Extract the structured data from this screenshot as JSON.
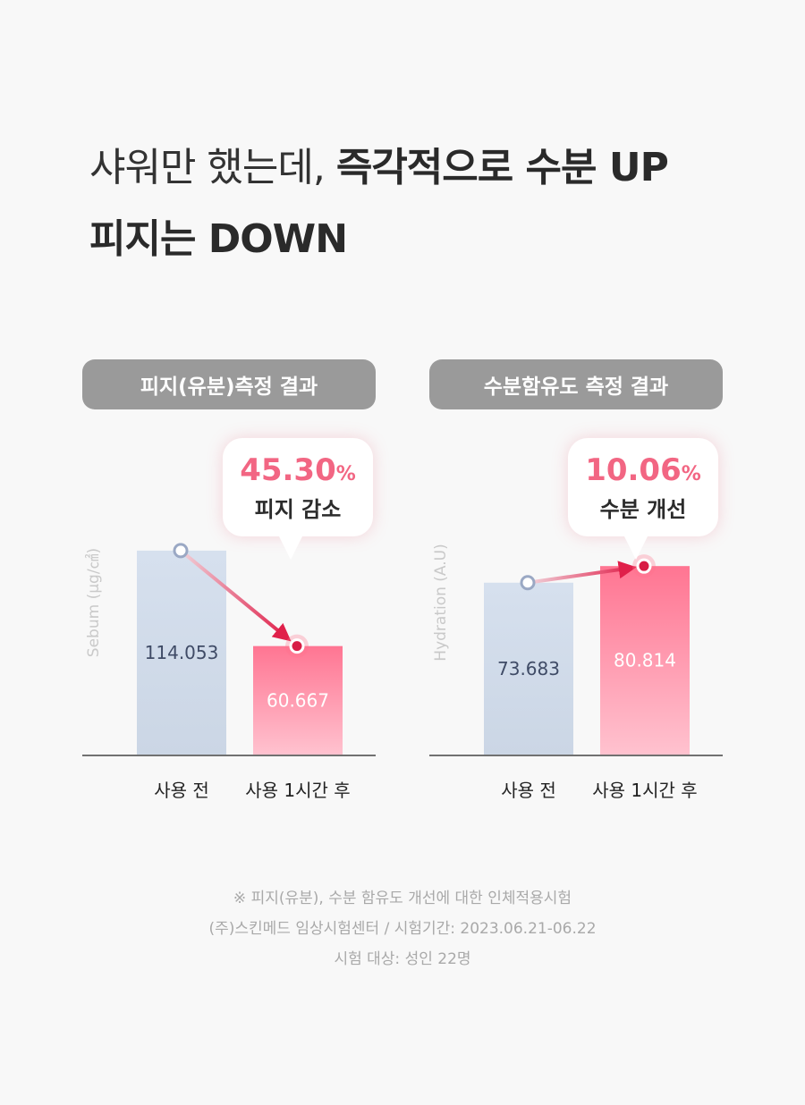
{
  "headline": {
    "line1_light": "샤워만 했는데, ",
    "line1_bold": "즉각적으로 수분 UP",
    "line2_bold": "피지는 DOWN"
  },
  "colors": {
    "before_bar": "#d6e0ee",
    "after_bar_top": "#ff7592",
    "after_bar_bottom": "#ffc2cf",
    "accent": "#f26683",
    "arrow": "#e0204a"
  },
  "chart_data": [
    {
      "type": "bar",
      "title": "피지(유분)측정 결과",
      "ylabel": "Sebum (μg/㎠)",
      "xlabel": "",
      "categories": [
        "사용 전",
        "사용 1시간 후"
      ],
      "values": [
        114.053,
        60.667
      ],
      "value_labels": [
        "114.053",
        "60.667"
      ],
      "ylim": [
        0,
        150
      ],
      "highlight": {
        "value": "45.30",
        "unit": "%",
        "label": "피지 감소"
      }
    },
    {
      "type": "bar",
      "title": "수분함유도 측정 결과",
      "ylabel": "Hydration (A.U)",
      "xlabel": "",
      "categories": [
        "사용 전",
        "사용 1시간 후"
      ],
      "values": [
        73.683,
        80.814
      ],
      "value_labels": [
        "73.683",
        "80.814"
      ],
      "ylim": [
        0,
        115
      ],
      "highlight": {
        "value": "10.06",
        "unit": "%",
        "label": "수분 개선"
      }
    }
  ],
  "footnote": {
    "line1": "※ 피지(유분), 수분 함유도 개선에 대한 인체적용시험",
    "line2": "(주)스킨메드 임상시험센터  /  시험기간: 2023.06.21-06.22",
    "line3": "시험 대상: 성인 22명"
  }
}
